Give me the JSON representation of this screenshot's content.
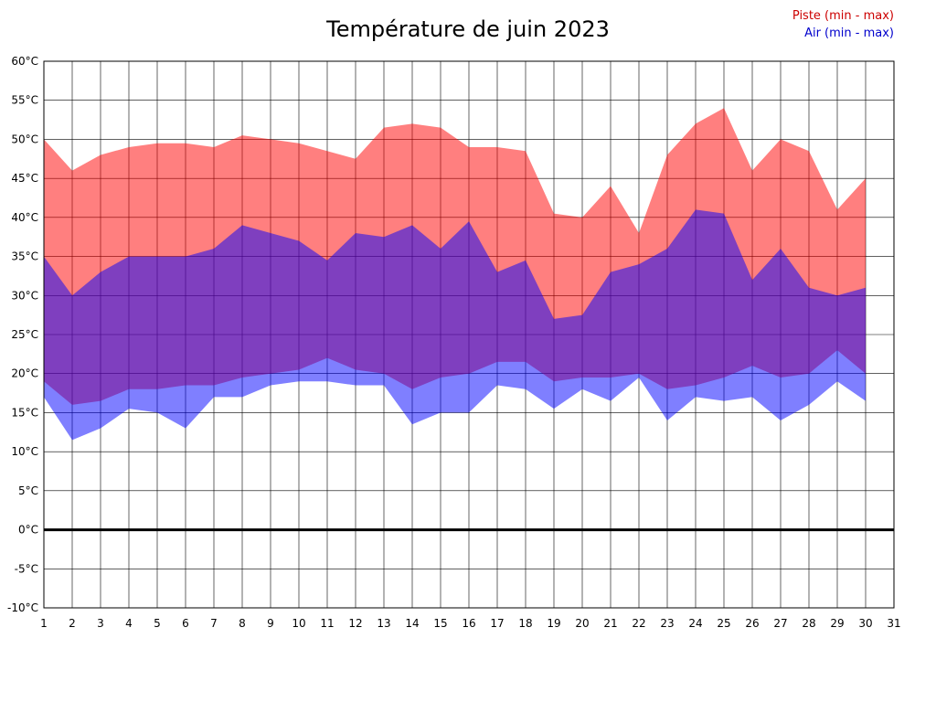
{
  "chart_data": {
    "type": "area",
    "title": "Température de juin 2023",
    "legend": {
      "piste": "Piste (min - max)",
      "air": "Air (min - max)"
    },
    "colors": {
      "piste": "#ff0000",
      "air": "#0000ff",
      "band_opacity": 0.5,
      "legend_piste": "#cc0000",
      "legend_air": "#0000cc",
      "grid": "#000000",
      "zero_line": "#000000"
    },
    "xlim": [
      1,
      31
    ],
    "ylim": [
      -10,
      60
    ],
    "grid": true,
    "zero_line": 0,
    "x_tick_labels": [
      "1",
      "2",
      "3",
      "4",
      "5",
      "6",
      "7",
      "8",
      "9",
      "10",
      "11",
      "12",
      "13",
      "14",
      "15",
      "16",
      "17",
      "18",
      "19",
      "20",
      "21",
      "22",
      "23",
      "24",
      "25",
      "26",
      "27",
      "28",
      "29",
      "30",
      "31"
    ],
    "y_ticks": [
      60,
      55,
      50,
      45,
      40,
      35,
      30,
      25,
      20,
      15,
      10,
      5,
      0,
      -5,
      -10
    ],
    "y_tick_labels": [
      "60°C",
      "55°C",
      "50°C",
      "45°C",
      "40°C",
      "35°C",
      "30°C",
      "25°C",
      "20°C",
      "15°C",
      "10°C",
      "5°C",
      "0°C",
      "-5°C",
      "-10°C"
    ],
    "days": [
      1,
      2,
      3,
      4,
      5,
      6,
      7,
      8,
      9,
      10,
      11,
      12,
      13,
      14,
      15,
      16,
      17,
      18,
      19,
      20,
      21,
      22,
      23,
      24,
      25,
      26,
      27,
      28,
      29,
      30
    ],
    "series": [
      {
        "name": "piste_max",
        "values": [
          50,
          46,
          48,
          49,
          49.5,
          49.5,
          49,
          50.5,
          50,
          49.5,
          48.5,
          47.5,
          51.5,
          52,
          51.5,
          49,
          49,
          48.5,
          40.5,
          40,
          44,
          38,
          48,
          52,
          54,
          46,
          50,
          48.5,
          41,
          45
        ]
      },
      {
        "name": "piste_min",
        "values": [
          19,
          16,
          16.5,
          18,
          18,
          18.5,
          18.5,
          19.5,
          20,
          20.5,
          22,
          20.5,
          20,
          18,
          19.5,
          20,
          21.5,
          21.5,
          19,
          19.5,
          19.5,
          20,
          18,
          18.5,
          19.5,
          21,
          19.5,
          20,
          23,
          20
        ]
      },
      {
        "name": "air_max",
        "values": [
          35,
          30,
          33,
          35,
          35,
          35,
          36,
          39,
          38,
          37,
          34.5,
          38,
          37.5,
          39,
          36,
          39.5,
          33,
          34.5,
          27,
          27.5,
          33,
          34,
          36,
          41,
          40.5,
          32,
          36,
          31,
          30,
          31
        ]
      },
      {
        "name": "air_min",
        "values": [
          17,
          11.5,
          13,
          15.5,
          15,
          13,
          17,
          17,
          18.5,
          19,
          19,
          18.5,
          18.5,
          13.5,
          15,
          15,
          18.5,
          18,
          15.5,
          18,
          16.5,
          19.5,
          14,
          17,
          16.5,
          17,
          14,
          16,
          19,
          16.5
        ]
      }
    ]
  }
}
